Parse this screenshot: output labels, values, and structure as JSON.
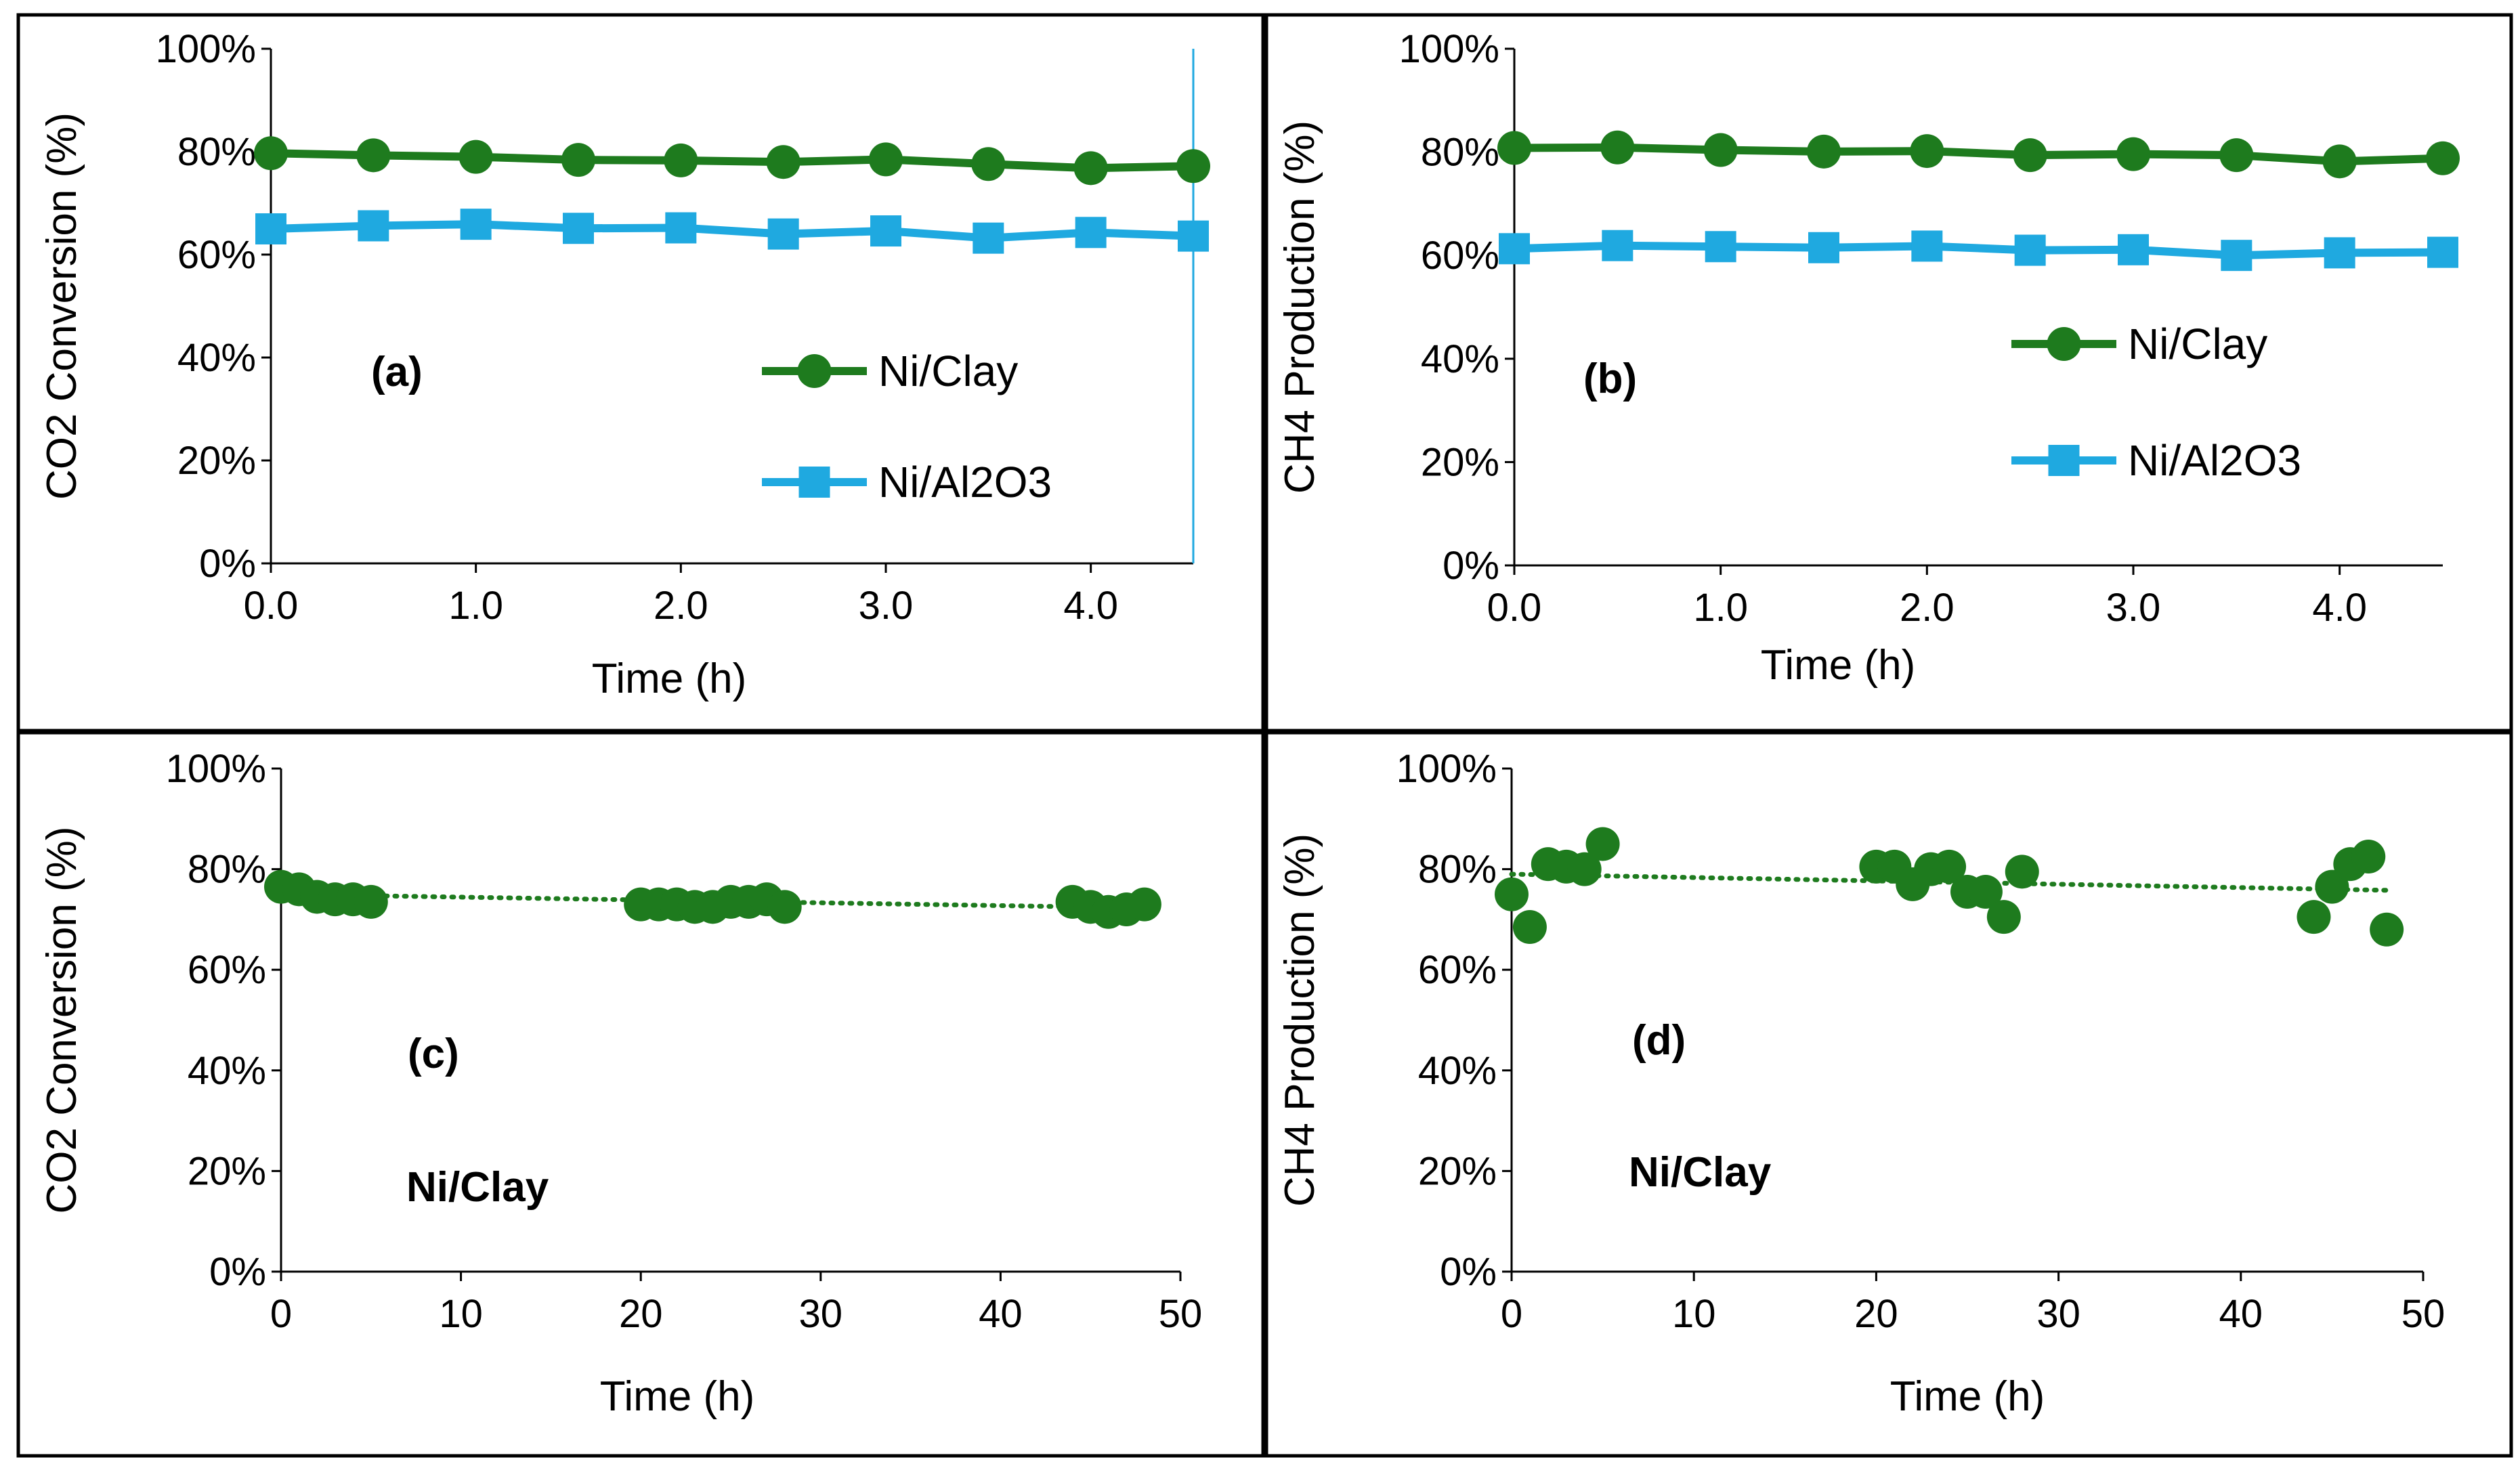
{
  "colors": {
    "ni_clay": "#1e7b1e",
    "ni_al2o3": "#1fa9e0",
    "axis": "#000000",
    "frame": "#000000"
  },
  "chart_data": [
    {
      "panel": "a",
      "type": "line",
      "label": "(a)",
      "xlabel": "Time (h)",
      "ylabel": "CO2 Conversion (%)",
      "xlim": [
        0,
        4.5
      ],
      "ylim": [
        0,
        100
      ],
      "xticks": [
        0,
        1,
        2,
        3,
        4
      ],
      "xtick_labels": [
        "0.0",
        "1.0",
        "2.0",
        "3.0",
        "4.0"
      ],
      "yticks": [
        0,
        20,
        40,
        60,
        80,
        100
      ],
      "ytick_labels": [
        "0%",
        "20%",
        "40%",
        "60%",
        "80%",
        "100%"
      ],
      "x": [
        0,
        0.5,
        1.0,
        1.5,
        2.0,
        2.5,
        3.0,
        3.5,
        4.0,
        4.5
      ],
      "series": [
        {
          "name": "Ni/Clay",
          "marker": "circle",
          "color": "#1e7b1e",
          "values": [
            79.7,
            79.3,
            79.0,
            78.4,
            78.3,
            78.0,
            78.5,
            77.6,
            76.8,
            77.2
          ]
        },
        {
          "name": "Ni/Al2O3",
          "marker": "square",
          "color": "#1fa9e0",
          "values": [
            65.0,
            65.6,
            65.9,
            65.1,
            65.2,
            64.0,
            64.6,
            63.2,
            64.3,
            63.6
          ]
        }
      ],
      "legend": "right-middle"
    },
    {
      "panel": "b",
      "type": "line",
      "label": "(b)",
      "xlabel": "Time (h)",
      "ylabel": "CH4 Production (%)",
      "xlim": [
        0,
        4.5
      ],
      "ylim": [
        0,
        100
      ],
      "xticks": [
        0,
        1,
        2,
        3,
        4
      ],
      "xtick_labels": [
        "0.0",
        "1.0",
        "2.0",
        "3.0",
        "4.0"
      ],
      "yticks": [
        0,
        20,
        40,
        60,
        80,
        100
      ],
      "ytick_labels": [
        "0%",
        "20%",
        "40%",
        "60%",
        "80%",
        "100%"
      ],
      "x": [
        0,
        0.5,
        1.0,
        1.5,
        2.0,
        2.5,
        3.0,
        3.5,
        4.0,
        4.5
      ],
      "series": [
        {
          "name": "Ni/Clay",
          "marker": "circle",
          "color": "#1e7b1e",
          "values": [
            80.8,
            80.9,
            80.4,
            80.1,
            80.2,
            79.4,
            79.6,
            79.4,
            78.2,
            78.8
          ]
        },
        {
          "name": "Ni/Al2O3",
          "marker": "square",
          "color": "#1fa9e0",
          "values": [
            61.3,
            61.9,
            61.7,
            61.5,
            61.8,
            61.0,
            61.1,
            60.0,
            60.5,
            60.6
          ]
        }
      ],
      "legend": "right-middle"
    },
    {
      "panel": "c",
      "type": "scatter",
      "label": "(c)",
      "sublabel": "Ni/Clay",
      "xlabel": "Time (h)",
      "ylabel": "CO2 Conversion (%)",
      "xlim": [
        0,
        50
      ],
      "ylim": [
        0,
        100
      ],
      "xticks": [
        0,
        10,
        20,
        30,
        40,
        50
      ],
      "xtick_labels": [
        "0",
        "10",
        "20",
        "30",
        "40",
        "50"
      ],
      "yticks": [
        0,
        20,
        40,
        60,
        80,
        100
      ],
      "ytick_labels": [
        "0%",
        "20%",
        "40%",
        "60%",
        "80%",
        "100%"
      ],
      "series": [
        {
          "name": "Ni/Clay",
          "marker": "circle",
          "color": "#1e7b1e",
          "x": [
            0,
            1,
            2,
            3,
            4,
            5,
            20,
            21,
            22,
            23,
            24,
            25,
            26,
            27,
            28,
            44,
            45,
            46,
            47,
            48
          ],
          "values": [
            76.5,
            76.0,
            74.5,
            74.0,
            74.0,
            73.5,
            73.0,
            73.0,
            73.0,
            72.5,
            72.5,
            73.5,
            73.5,
            74.0,
            72.5,
            73.5,
            72.5,
            71.5,
            72.0,
            73.0
          ]
        }
      ],
      "trendline": {
        "style": "dotted",
        "x": [
          0,
          48
        ],
        "values": [
          75.0,
          72.3
        ]
      }
    },
    {
      "panel": "d",
      "type": "scatter",
      "label": "(d)",
      "sublabel": "Ni/Clay",
      "xlabel": "Time (h)",
      "ylabel": "CH4 Production (%)",
      "xlim": [
        0,
        50
      ],
      "ylim": [
        0,
        100
      ],
      "xticks": [
        0,
        10,
        20,
        30,
        40,
        50
      ],
      "xtick_labels": [
        "0",
        "10",
        "20",
        "30",
        "40",
        "50"
      ],
      "yticks": [
        0,
        20,
        40,
        60,
        80,
        100
      ],
      "ytick_labels": [
        "0%",
        "20%",
        "40%",
        "60%",
        "80%",
        "100%"
      ],
      "series": [
        {
          "name": "Ni/Clay",
          "marker": "circle",
          "color": "#1e7b1e",
          "x": [
            0,
            1,
            2,
            3,
            4,
            5,
            20,
            21,
            22,
            23,
            24,
            25,
            26,
            27,
            28,
            44,
            45,
            46,
            47,
            48
          ],
          "values": [
            75.0,
            68.5,
            81.0,
            80.5,
            80.0,
            85.0,
            80.5,
            80.5,
            77.0,
            80.0,
            80.5,
            75.5,
            75.5,
            70.5,
            79.5,
            70.5,
            76.5,
            81.0,
            82.5,
            68.0
          ]
        }
      ],
      "trendline": {
        "style": "dotted",
        "x": [
          0,
          48
        ],
        "values": [
          79.0,
          75.8
        ]
      }
    }
  ]
}
